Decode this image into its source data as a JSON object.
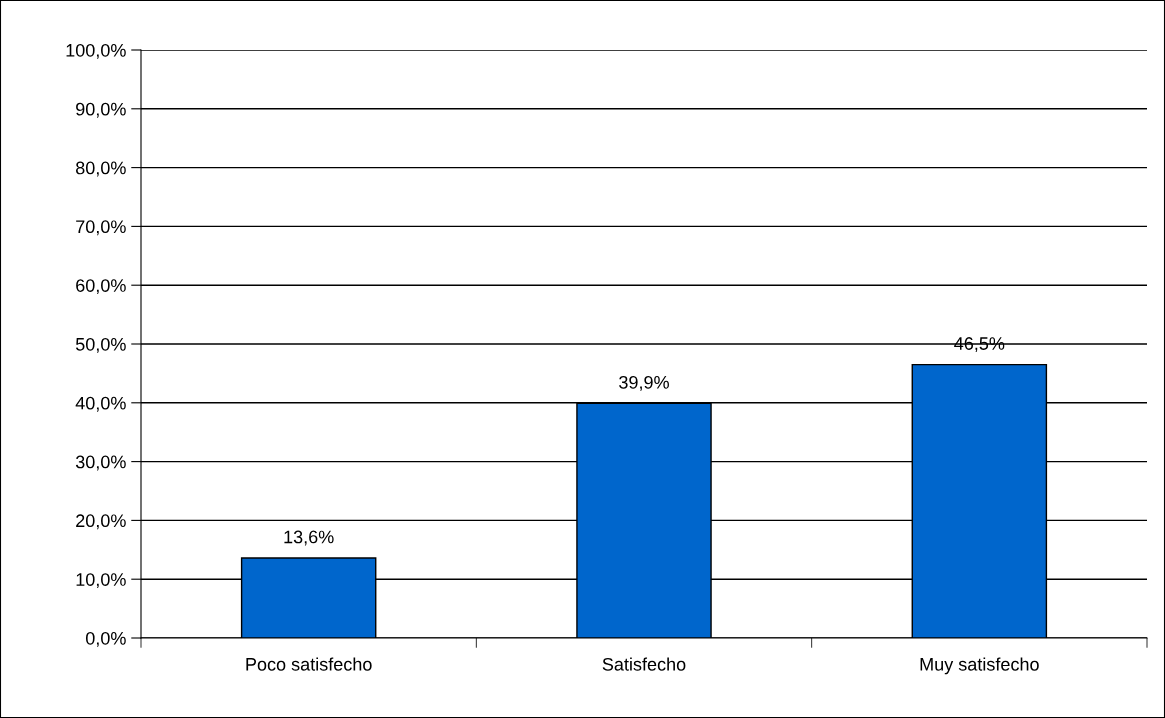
{
  "chart_data": {
    "type": "bar",
    "categories": [
      "Poco satisfecho",
      "Satisfecho",
      "Muy satisfecho"
    ],
    "values": [
      13.6,
      39.9,
      46.5
    ],
    "value_labels": [
      "13,6%",
      "39,9%",
      "46,5%"
    ],
    "color": "#0066cc",
    "ylim": [
      0,
      100
    ],
    "yticks": [
      {
        "value": 0,
        "label": "0,0%"
      },
      {
        "value": 10,
        "label": "10,0%"
      },
      {
        "value": 20,
        "label": "20,0%"
      },
      {
        "value": 30,
        "label": "30,0%"
      },
      {
        "value": 40,
        "label": "40,0%"
      },
      {
        "value": 50,
        "label": "50,0%"
      },
      {
        "value": 60,
        "label": "60,0%"
      },
      {
        "value": 70,
        "label": "70,0%"
      },
      {
        "value": 80,
        "label": "80,0%"
      },
      {
        "value": 90,
        "label": "90,0%"
      },
      {
        "value": 100,
        "label": "100,0%"
      }
    ],
    "grid": "y",
    "legend": false
  }
}
